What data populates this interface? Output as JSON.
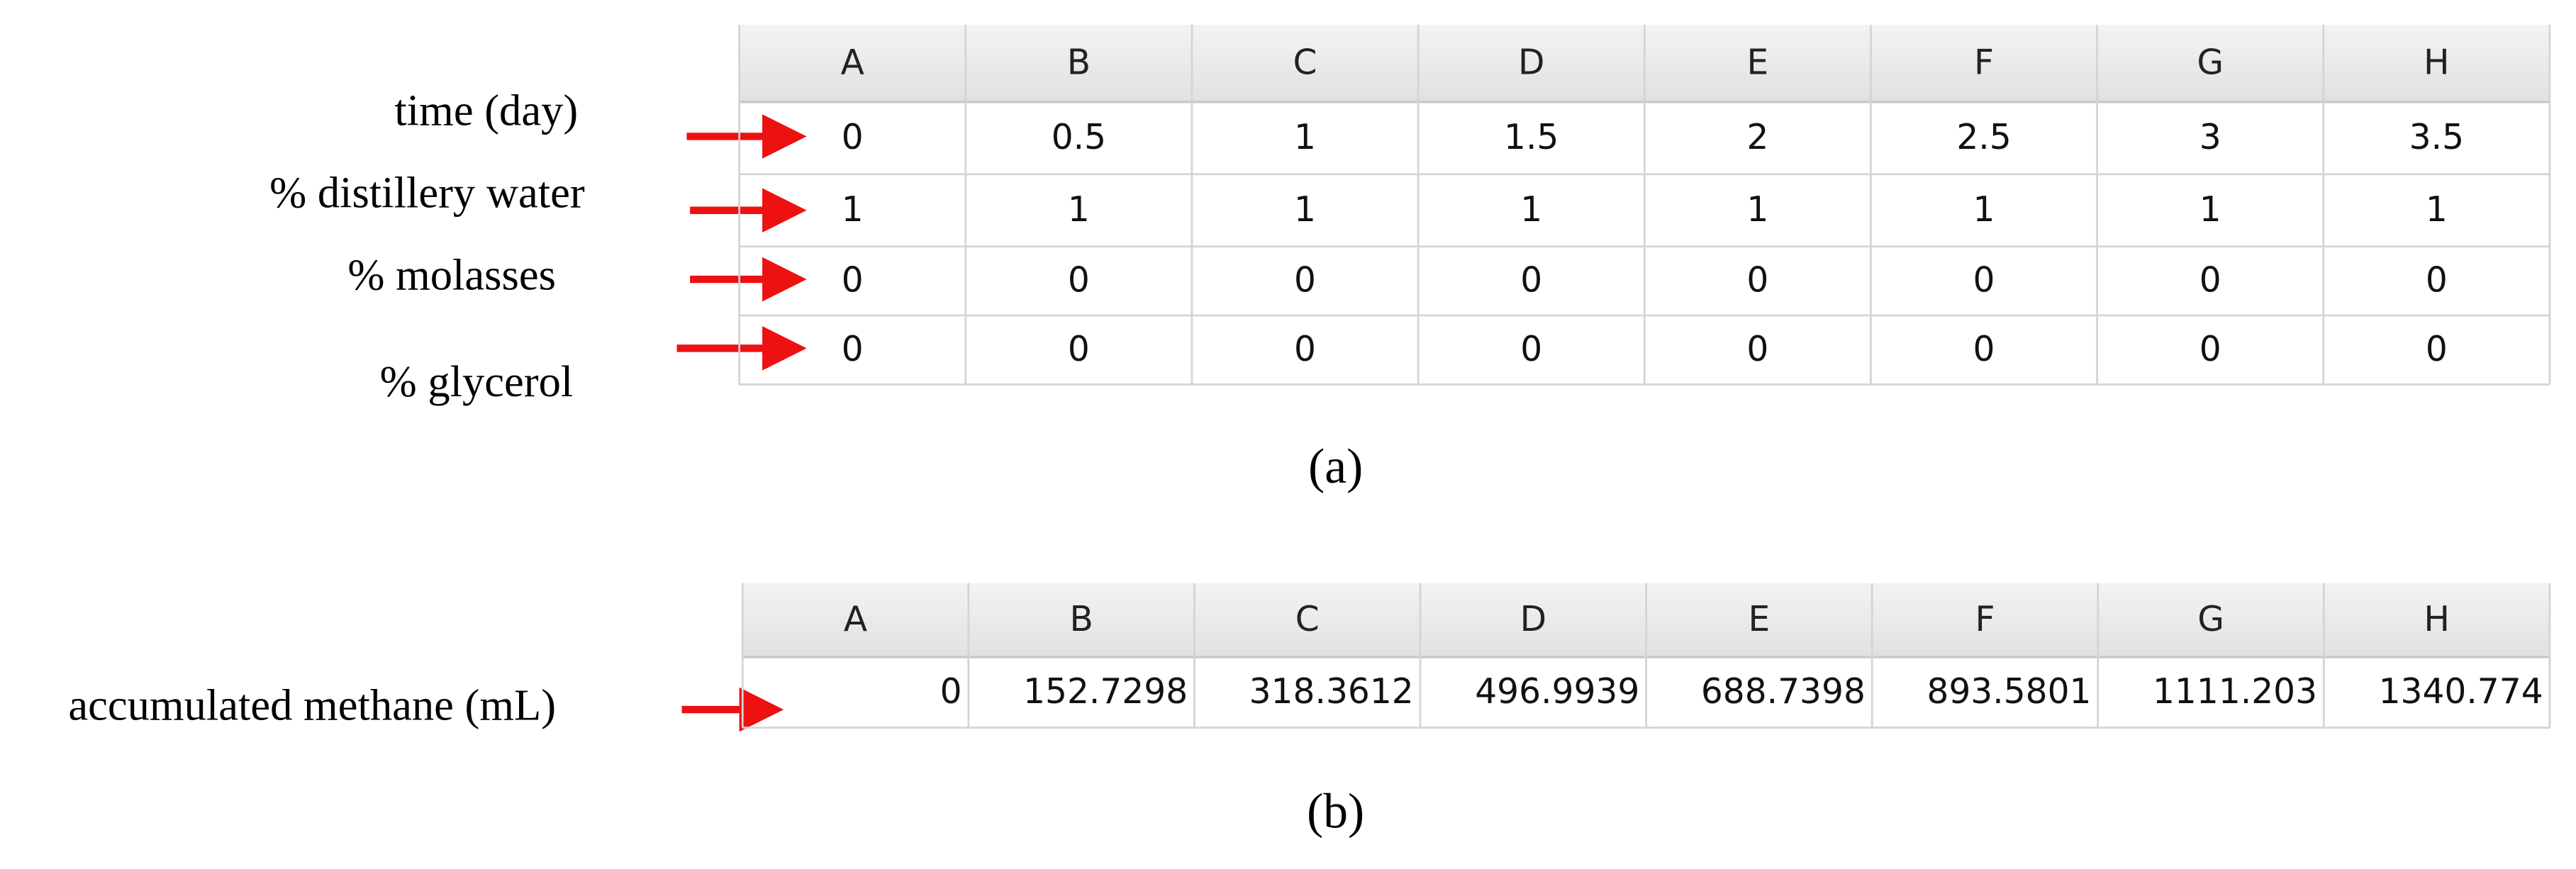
{
  "table_a": {
    "columns": [
      "A",
      "B",
      "C",
      "D",
      "E",
      "F",
      "G",
      "H"
    ],
    "rows": [
      {
        "label": "time (day)",
        "cells": [
          "0",
          "0.5",
          "1",
          "1.5",
          "2",
          "2.5",
          "3",
          "3.5"
        ]
      },
      {
        "label": "% distillery water",
        "cells": [
          "1",
          "1",
          "1",
          "1",
          "1",
          "1",
          "1",
          "1"
        ]
      },
      {
        "label": "% molasses",
        "cells": [
          "0",
          "0",
          "0",
          "0",
          "0",
          "0",
          "0",
          "0"
        ]
      },
      {
        "label": "% glycerol",
        "cells": [
          "0",
          "0",
          "0",
          "0",
          "0",
          "0",
          "0",
          "0"
        ]
      }
    ],
    "caption": "(a)"
  },
  "table_b": {
    "columns": [
      "A",
      "B",
      "C",
      "D",
      "E",
      "F",
      "G",
      "H"
    ],
    "rows": [
      {
        "label": "accumulated methane (mL)",
        "cells": [
          "0",
          "152.7298",
          "318.3612",
          "496.9939",
          "688.7398",
          "893.5801",
          "1111.203",
          "1340.774"
        ]
      }
    ],
    "caption": "(b)"
  }
}
